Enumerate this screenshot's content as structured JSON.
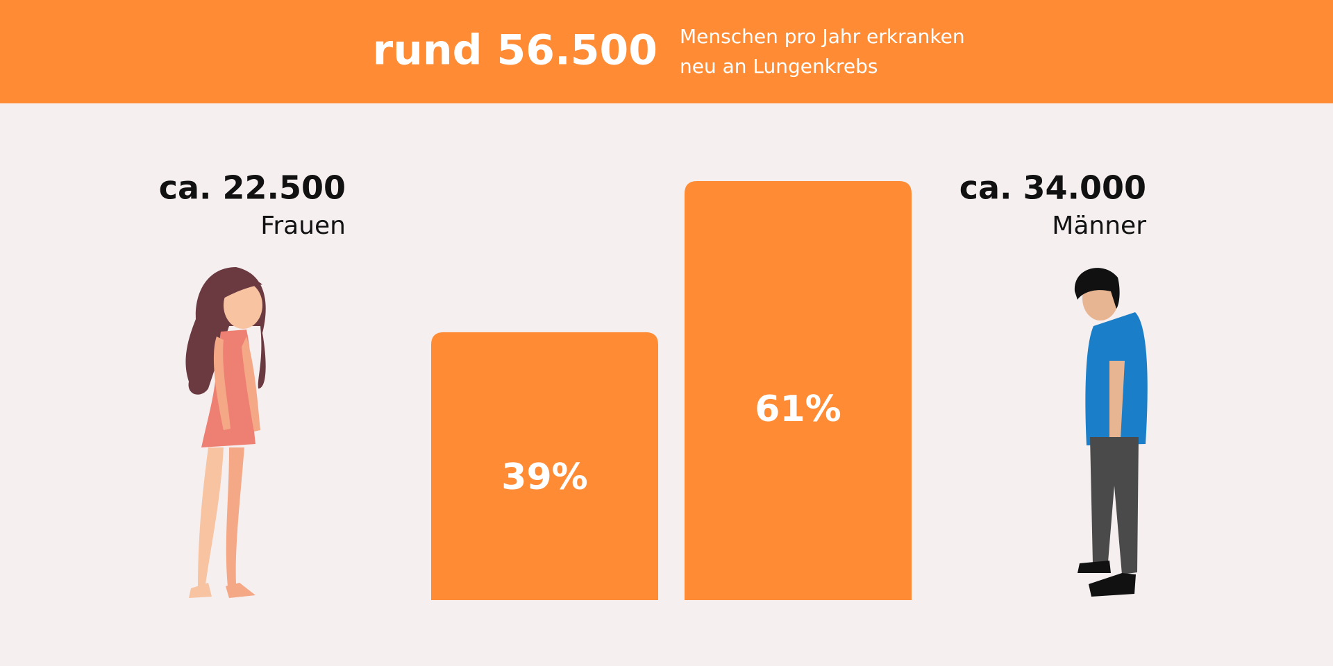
{
  "header": {
    "headline": "rund 56.500",
    "text_lines": [
      "Menschen pro Jahr erkranken",
      "neu an Lungenkrebs"
    ]
  },
  "chart_data": {
    "type": "bar",
    "categories": [
      "Frauen",
      "Männer"
    ],
    "counts": [
      "ca. 22.500",
      "ca. 34.000"
    ],
    "values": [
      39,
      61
    ],
    "value_labels": [
      "39%",
      "61%"
    ],
    "color": "#ff8c35"
  }
}
